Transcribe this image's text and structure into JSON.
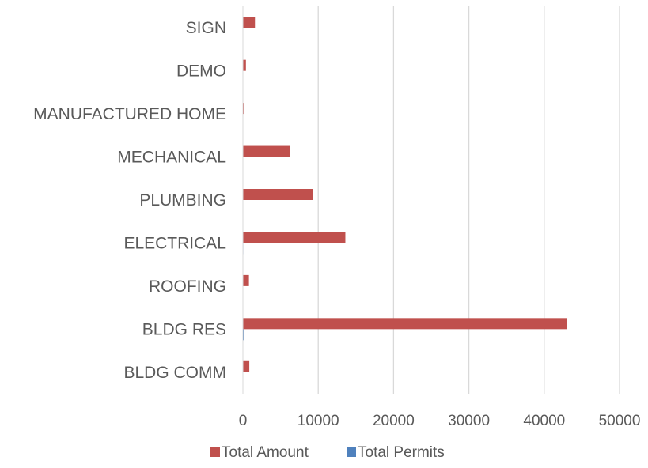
{
  "chart_data": {
    "type": "bar",
    "orientation": "horizontal",
    "categories": [
      "SIGN",
      "DEMO",
      "MANUFACTURED HOME",
      "MECHANICAL",
      "PLUMBING",
      "ELECTRICAL",
      "ROOFING",
      "BLDG RES",
      "BLDG COMM"
    ],
    "series": [
      {
        "name": "Total Amount",
        "color": "#C0504D",
        "values": [
          1600,
          400,
          100,
          6300,
          9300,
          13600,
          800,
          43000,
          850
        ]
      },
      {
        "name": "Total Permits",
        "color": "#4F81BD",
        "values": [
          5,
          3,
          1,
          40,
          50,
          60,
          5,
          180,
          4
        ]
      }
    ],
    "xticks": [
      "0",
      "10000",
      "20000",
      "30000",
      "40000",
      "50000"
    ],
    "xlim": [
      0,
      50000
    ],
    "grid": true,
    "legend_position": "bottom"
  }
}
